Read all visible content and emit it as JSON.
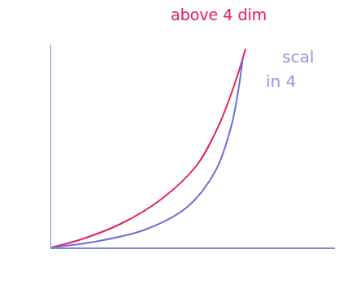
{
  "chart_data": {
    "type": "line",
    "xlim": [
      0,
      10
    ],
    "ylim": [
      0,
      10
    ],
    "grid": false,
    "tick_labels": false,
    "series": [
      {
        "color": "#e0245e",
        "line_style": "solid",
        "x": [
          0,
          1.06,
          2.5,
          3.9,
          5.1,
          5.9,
          6.5,
          6.85
        ],
        "values": [
          0,
          0.4,
          1.2,
          2.4,
          4,
          6,
          8.2,
          9.8
        ]
      },
      {
        "color": "#6a6fd8",
        "line_style": "solid",
        "x": [
          0,
          1.6,
          3.35,
          4.8,
          5.8,
          6.35,
          6.6,
          6.75
        ],
        "values": [
          0,
          0.3,
          0.9,
          2,
          3.8,
          6,
          7.8,
          9.3
        ]
      }
    ],
    "annotations": [
      {
        "text": "above 4 dim",
        "color": "#e0245e"
      },
      {
        "text": "scal",
        "color": "#9c97e0"
      },
      {
        "text": "in 4",
        "color": "#9c97e0"
      }
    ]
  }
}
